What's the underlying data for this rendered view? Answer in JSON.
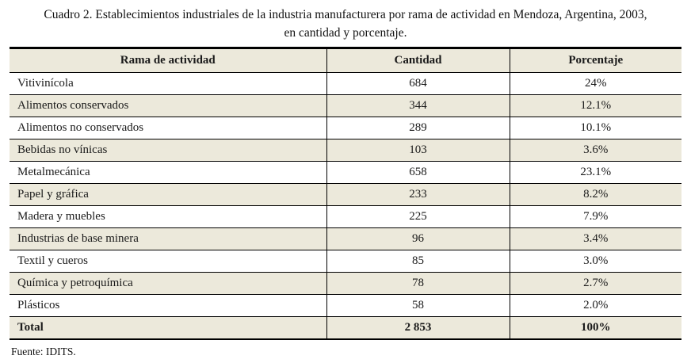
{
  "title": {
    "line1": "Cuadro 2. Establecimientos industriales de la industria manufacturera por rama de actividad en Mendoza, Argentina, 2003,",
    "line2": "en cantidad y porcentaje."
  },
  "table": {
    "columns": [
      "Rama de actividad",
      "Cantidad",
      "Porcentaje"
    ],
    "rows": [
      {
        "rama": "Vitivinícola",
        "cantidad": "684",
        "porcentaje": "24%"
      },
      {
        "rama": "Alimentos conservados",
        "cantidad": "344",
        "porcentaje": "12.1%"
      },
      {
        "rama": "Alimentos no conservados",
        "cantidad": "289",
        "porcentaje": "10.1%"
      },
      {
        "rama": "Bebidas no vínicas",
        "cantidad": "103",
        "porcentaje": "3.6%"
      },
      {
        "rama": "Metalmecánica",
        "cantidad": "658",
        "porcentaje": "23.1%"
      },
      {
        "rama": "Papel y gráfica",
        "cantidad": "233",
        "porcentaje": "8.2%"
      },
      {
        "rama": "Madera y muebles",
        "cantidad": "225",
        "porcentaje": "7.9%"
      },
      {
        "rama": "Industrias de base minera",
        "cantidad": "96",
        "porcentaje": "3.4%"
      },
      {
        "rama": "Textil y cueros",
        "cantidad": "85",
        "porcentaje": "3.0%"
      },
      {
        "rama": "Química y petroquímica",
        "cantidad": "78",
        "porcentaje": "2.7%"
      },
      {
        "rama": "Plásticos",
        "cantidad": "58",
        "porcentaje": "2.0%"
      }
    ],
    "total": {
      "rama": "Total",
      "cantidad": "2 853",
      "porcentaje": "100%"
    }
  },
  "footer": {
    "source": "Fuente: IDITS."
  },
  "colors": {
    "row_alt_background": "#ece9db",
    "border": "#000000",
    "text": "#1a1a1a"
  }
}
